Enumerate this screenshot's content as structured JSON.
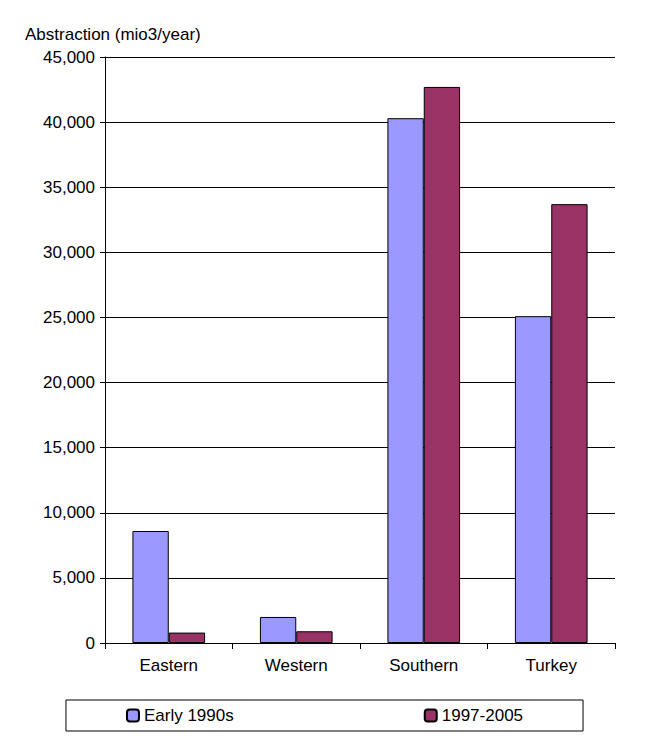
{
  "chart_data": {
    "type": "bar",
    "ylabel": "Abstraction (mio3/year)",
    "categories": [
      "Eastern",
      "Western",
      "Southern",
      "Turkey"
    ],
    "series": [
      {
        "name": "Early 1990s",
        "color": "#9999ff",
        "values": [
          8600,
          2000,
          40300,
          25100
        ]
      },
      {
        "name": "1997-2005",
        "color": "#993366",
        "values": [
          800,
          900,
          42700,
          33700
        ]
      }
    ],
    "ylim": [
      0,
      45000
    ],
    "yticks": [
      0,
      5000,
      10000,
      15000,
      20000,
      25000,
      30000,
      35000,
      40000,
      45000
    ],
    "grid": true,
    "legend": "bottom"
  }
}
